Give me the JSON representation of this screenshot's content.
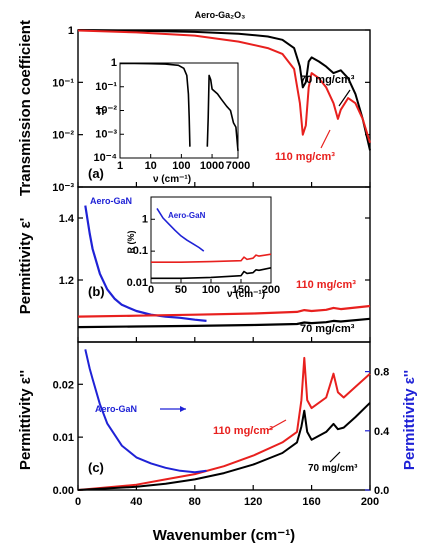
{
  "figure_title": "Aero-Ga₂O₃",
  "chart_data": [
    {
      "id": "a",
      "type": "line",
      "panel_label": "(a)",
      "ylabel": "Transmission coefficient",
      "yscale": "log",
      "xlim": [
        0,
        200
      ],
      "ylim": [
        0.001,
        1
      ],
      "yticks": [
        "10⁻³",
        "10⁻²",
        "10⁻¹",
        "1"
      ],
      "series": [
        {
          "name": "70 mg/cm³",
          "color": "#000000",
          "x": [
            0,
            40,
            80,
            110,
            130,
            140,
            148,
            152,
            154,
            156,
            158,
            160,
            165,
            170,
            175,
            180,
            185,
            190,
            195,
            200
          ],
          "y": [
            1.0,
            0.97,
            0.92,
            0.85,
            0.75,
            0.65,
            0.45,
            0.2,
            0.08,
            0.1,
            0.25,
            0.3,
            0.25,
            0.2,
            0.15,
            0.17,
            0.12,
            0.06,
            0.02,
            0.005
          ]
        },
        {
          "name": "110 mg/cm³",
          "color": "#e8201e",
          "x": [
            0,
            40,
            80,
            110,
            130,
            140,
            148,
            152,
            154,
            156,
            158,
            160,
            165,
            170,
            175,
            178,
            180,
            185,
            190,
            195,
            200
          ],
          "y": [
            0.98,
            0.9,
            0.78,
            0.6,
            0.45,
            0.35,
            0.18,
            0.04,
            0.01,
            0.015,
            0.08,
            0.15,
            0.12,
            0.08,
            0.04,
            0.02,
            0.03,
            0.05,
            0.04,
            0.02,
            0.007
          ]
        }
      ],
      "annotations": [
        "70 mg/cm³",
        "110 mg/cm³"
      ]
    },
    {
      "id": "a-inset",
      "type": "line",
      "ylabel": "Tr",
      "xlabel": "ν (cm⁻¹)",
      "xscale": "log",
      "yscale": "log",
      "xlim": [
        1,
        7000
      ],
      "ylim": [
        0.0001,
        1
      ],
      "xticks": [
        "1",
        "10",
        "100",
        "1000",
        "7000"
      ],
      "yticks": [
        "10⁻⁴",
        "10⁻³",
        "10⁻²",
        "10⁻¹",
        "1"
      ],
      "series": [
        {
          "name": "",
          "color": "#000000",
          "x": [
            1,
            3,
            10,
            30,
            80,
            120,
            150,
            170,
            180,
            190
          ],
          "y": [
            0.95,
            0.95,
            0.93,
            0.9,
            0.8,
            0.6,
            0.3,
            0.05,
            0.005,
            0.0003
          ]
        },
        {
          "name": "",
          "color": "#000000",
          "x": [
            700,
            750,
            800,
            900,
            1000,
            1500,
            2000,
            3000,
            4000,
            5000,
            6000,
            7000
          ],
          "y": [
            0.0003,
            0.005,
            0.3,
            0.2,
            0.08,
            0.05,
            0.03,
            0.015,
            0.01,
            0.003,
            0.002,
            0.0002
          ]
        }
      ]
    },
    {
      "id": "b",
      "type": "line",
      "panel_label": "(b)",
      "ylabel": "Permittivity ε'",
      "xlim": [
        0,
        200
      ],
      "ylim": [
        1.0,
        1.5
      ],
      "yticks": [
        "1.2",
        "1.4"
      ],
      "series": [
        {
          "name": "Aero-GaN",
          "color": "#1f22d6",
          "x": [
            5,
            8,
            10,
            15,
            20,
            25,
            30,
            40,
            50,
            60,
            70,
            80,
            88
          ],
          "y": [
            1.44,
            1.35,
            1.3,
            1.22,
            1.17,
            1.14,
            1.12,
            1.1,
            1.088,
            1.082,
            1.078,
            1.072,
            1.068
          ]
        },
        {
          "name": "110 mg/cm³",
          "color": "#e8201e",
          "x": [
            0,
            40,
            80,
            120,
            150,
            155,
            160,
            170,
            175,
            180,
            200
          ],
          "y": [
            1.082,
            1.085,
            1.088,
            1.092,
            1.097,
            1.103,
            1.1,
            1.104,
            1.11,
            1.106,
            1.116
          ]
        },
        {
          "name": "70 mg/cm³",
          "color": "#000000",
          "x": [
            0,
            40,
            80,
            120,
            150,
            155,
            160,
            170,
            175,
            180,
            200
          ],
          "y": [
            1.048,
            1.05,
            1.052,
            1.055,
            1.058,
            1.063,
            1.061,
            1.064,
            1.068,
            1.066,
            1.075
          ]
        }
      ],
      "annotations": [
        "Aero-GaN",
        "110 mg/cm³",
        "70 mg/cm³"
      ]
    },
    {
      "id": "b-inset",
      "type": "line",
      "ylabel": "R (%)",
      "xlabel": "ν (cm⁻¹)",
      "yscale": "log",
      "xlim": [
        0,
        200
      ],
      "ylim": [
        0.01,
        5
      ],
      "xticks": [
        "0",
        "50",
        "100",
        "150",
        "200"
      ],
      "yticks": [
        "0.01",
        "0.1",
        "1"
      ],
      "series": [
        {
          "name": "Aero-GaN",
          "color": "#1f22d6",
          "x": [
            10,
            20,
            30,
            40,
            50,
            60,
            70,
            80,
            88
          ],
          "y": [
            2.2,
            1.1,
            0.7,
            0.45,
            0.3,
            0.22,
            0.17,
            0.13,
            0.1
          ]
        },
        {
          "name": "110 mg/cm³",
          "color": "#e8201e",
          "x": [
            0,
            50,
            100,
            150,
            155,
            160,
            170,
            175,
            180,
            200
          ],
          "y": [
            0.045,
            0.045,
            0.047,
            0.05,
            0.065,
            0.055,
            0.06,
            0.075,
            0.07,
            0.08
          ]
        },
        {
          "name": "70 mg/cm³",
          "color": "#000000",
          "x": [
            0,
            50,
            100,
            150,
            155,
            160,
            170,
            175,
            180,
            200
          ],
          "y": [
            0.014,
            0.014,
            0.015,
            0.017,
            0.023,
            0.02,
            0.021,
            0.026,
            0.025,
            0.03
          ]
        }
      ]
    },
    {
      "id": "c",
      "type": "line",
      "panel_label": "(c)",
      "ylabel": "Permittivity ε''",
      "ylabel_right": "Permittivity ε''",
      "xlabel": "Wavenumber (cm⁻¹)",
      "xlim": [
        0,
        200
      ],
      "ylim": [
        0,
        0.028
      ],
      "ylim_right": [
        0,
        1.0
      ],
      "xticks": [
        "0",
        "40",
        "80",
        "120",
        "160",
        "200"
      ],
      "yticks": [
        "0.00",
        "0.01",
        "0.02"
      ],
      "yticks_right": [
        "0.0",
        "0.4",
        "0.8"
      ],
      "series": [
        {
          "name": "110 mg/cm³",
          "color": "#e8201e",
          "x": [
            0,
            20,
            40,
            60,
            80,
            100,
            120,
            140,
            150,
            153,
            155,
            157,
            160,
            170,
            175,
            178,
            182,
            190,
            200
          ],
          "y": [
            0.0,
            0.0005,
            0.001,
            0.002,
            0.003,
            0.0045,
            0.0065,
            0.009,
            0.011,
            0.017,
            0.025,
            0.017,
            0.0155,
            0.0175,
            0.022,
            0.0185,
            0.0175,
            0.0195,
            0.022
          ]
        },
        {
          "name": "70 mg/cm³",
          "color": "#000000",
          "x": [
            0,
            20,
            40,
            60,
            80,
            100,
            120,
            140,
            150,
            153,
            155,
            157,
            160,
            170,
            175,
            178,
            182,
            190,
            200
          ],
          "y": [
            0.0,
            0.0003,
            0.0006,
            0.0012,
            0.002,
            0.0032,
            0.0048,
            0.007,
            0.009,
            0.012,
            0.015,
            0.011,
            0.0095,
            0.011,
            0.0125,
            0.0115,
            0.0118,
            0.0138,
            0.0165
          ]
        },
        {
          "name": "Aero-GaN",
          "color": "#1f22d6",
          "axis": "right",
          "x": [
            5,
            8,
            10,
            15,
            20,
            30,
            40,
            50,
            60,
            70,
            80,
            88
          ],
          "y": [
            0.95,
            0.82,
            0.75,
            0.58,
            0.45,
            0.3,
            0.22,
            0.18,
            0.15,
            0.13,
            0.12,
            0.13
          ]
        }
      ],
      "annotations": [
        "Aero-GaN",
        "110 mg/cm³",
        "70 mg/cm³"
      ]
    }
  ]
}
